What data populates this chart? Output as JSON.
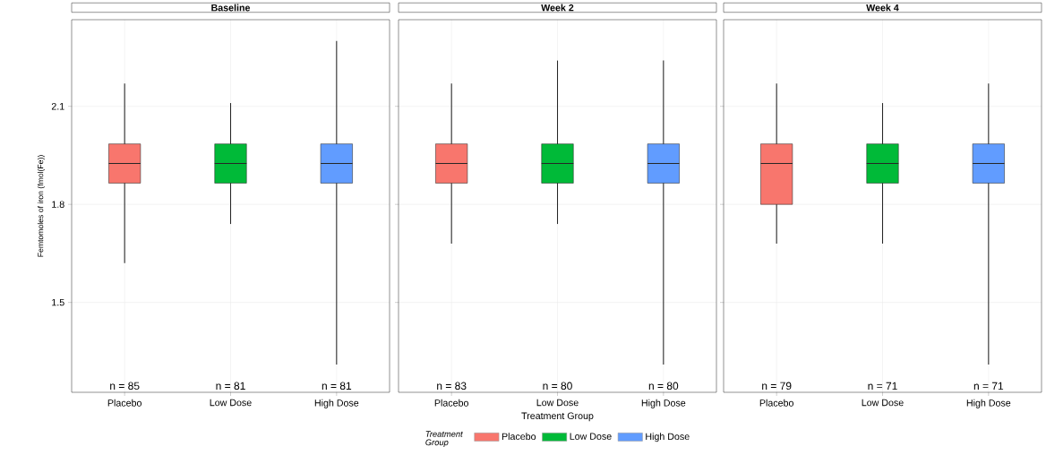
{
  "chart_data": [
    {
      "type": "box",
      "title": "Baseline",
      "ylabel": "Femtomoles of iron (fmol(Fe))",
      "categories": [
        "Placebo",
        "Low Dose",
        "High Dose"
      ],
      "series": [
        {
          "color": "#f8766d",
          "boxes": [
            {
              "low": 1.62,
              "q1": 1.865,
              "median": 1.925,
              "q3": 1.985,
              "high": 2.17
            },
            null,
            null
          ]
        },
        {
          "color": "#00ba38",
          "boxes": [
            null,
            {
              "low": 1.74,
              "q1": 1.865,
              "median": 1.925,
              "q3": 1.985,
              "high": 2.11
            },
            null
          ]
        },
        {
          "color": "#619cff",
          "boxes": [
            null,
            null,
            {
              "low": 1.31,
              "q1": 1.865,
              "median": 1.925,
              "q3": 1.985,
              "high": 2.3
            }
          ]
        }
      ],
      "annotations": [
        "n = 85",
        "n = 81",
        "n = 81"
      ],
      "ylim": [
        1.225,
        2.365
      ],
      "yticks": [
        1.5,
        1.8,
        2.1
      ],
      "grid": true
    },
    {
      "type": "box",
      "title": "Week 2",
      "xlabel": "Treatment Group",
      "legend_title": "Treatment Group",
      "legend": "bottom",
      "categories": [
        "Placebo",
        "Low Dose",
        "High Dose"
      ],
      "series": [
        {
          "name": "Placebo",
          "color": "#f8766d",
          "boxes": [
            {
              "low": 1.68,
              "q1": 1.865,
              "median": 1.925,
              "q3": 1.985,
              "high": 2.17
            },
            null,
            null
          ]
        },
        {
          "name": "Low Dose",
          "color": "#00ba38",
          "boxes": [
            null,
            {
              "low": 1.74,
              "q1": 1.865,
              "median": 1.925,
              "q3": 1.985,
              "high": 2.24
            },
            null
          ]
        },
        {
          "name": "High Dose",
          "color": "#619cff",
          "boxes": [
            null,
            null,
            {
              "low": 1.31,
              "q1": 1.865,
              "median": 1.925,
              "q3": 1.985,
              "high": 2.24
            }
          ]
        }
      ],
      "annotations": [
        "n = 83",
        "n = 80",
        "n = 80"
      ],
      "ylim": [
        1.225,
        2.365
      ],
      "yticks": [
        1.5,
        1.8,
        2.1
      ],
      "grid": true,
      "tick_labels": "x"
    },
    {
      "type": "box",
      "title": "Week 4",
      "categories": [
        "Placebo",
        "Low Dose",
        "High Dose"
      ],
      "series": [
        {
          "color": "#f8766d",
          "boxes": [
            {
              "low": 1.68,
              "q1": 1.8,
              "median": 1.925,
              "q3": 1.985,
              "high": 2.17
            },
            null,
            null
          ]
        },
        {
          "color": "#00ba38",
          "boxes": [
            null,
            {
              "low": 1.68,
              "q1": 1.865,
              "median": 1.925,
              "q3": 1.985,
              "high": 2.11
            },
            null
          ]
        },
        {
          "color": "#619cff",
          "boxes": [
            null,
            null,
            {
              "low": 1.31,
              "q1": 1.865,
              "median": 1.925,
              "q3": 1.985,
              "high": 2.17
            }
          ]
        }
      ],
      "annotations": [
        "n = 79",
        "n = 71",
        "n = 71"
      ],
      "ylim": [
        1.225,
        2.365
      ],
      "yticks": [
        1.5,
        1.8,
        2.1
      ],
      "grid": true,
      "tick_labels": "x"
    }
  ]
}
